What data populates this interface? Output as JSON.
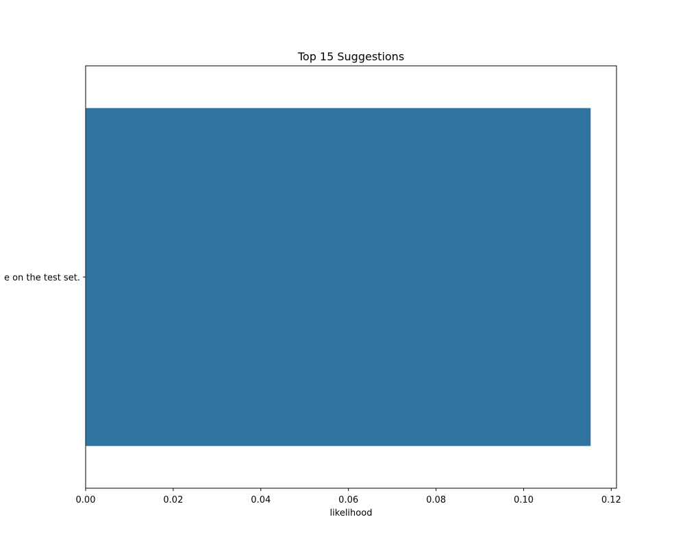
{
  "chart_data": {
    "type": "bar",
    "orientation": "horizontal",
    "title": "Top 15 Suggestions",
    "xlabel": "likelihood",
    "ylabel": "",
    "categories": [
      "e on the test set."
    ],
    "values": [
      0.1153
    ],
    "xlim": [
      0,
      0.1212
    ],
    "xticks": [
      0.0,
      0.02,
      0.04,
      0.06,
      0.08,
      0.1,
      0.12
    ],
    "xtick_labels": [
      "0.00",
      "0.02",
      "0.04",
      "0.06",
      "0.08",
      "0.10",
      "0.12"
    ],
    "grid": false,
    "legend": "none",
    "bar_color": "#3274a1",
    "edge_color": "#e07b39"
  }
}
